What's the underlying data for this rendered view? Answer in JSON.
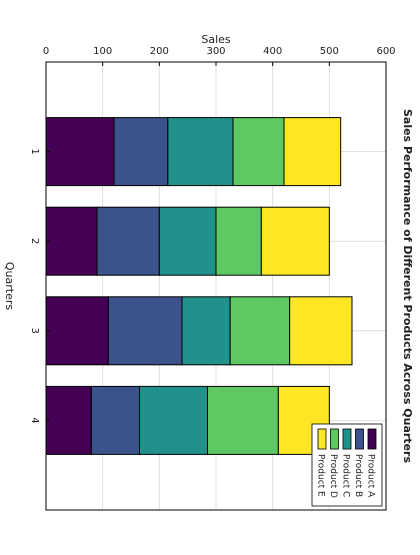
{
  "chart_data": {
    "type": "bar",
    "orientation": "vertical",
    "stacked": true,
    "rotated_view": "rotated 90 degrees clockwise",
    "title": "Sales Performance of Different Products Across Quarters",
    "xlabel": "Quarters",
    "ylabel": "Sales",
    "ylim": [
      0,
      600
    ],
    "yticks": [
      "0",
      "100",
      "200",
      "300",
      "400",
      "500",
      "600"
    ],
    "categories": [
      "1",
      "2",
      "3",
      "4"
    ],
    "grid": true,
    "legend_position": "upper-left",
    "series": [
      {
        "name": "Product A",
        "color": "#440154",
        "values": [
          120,
          90,
          110,
          80
        ]
      },
      {
        "name": "Product B",
        "color": "#3b528b",
        "values": [
          95,
          110,
          130,
          85
        ]
      },
      {
        "name": "Product C",
        "color": "#21918c",
        "values": [
          115,
          100,
          85,
          120
        ]
      },
      {
        "name": "Product D",
        "color": "#5ec962",
        "values": [
          90,
          80,
          105,
          125
        ]
      },
      {
        "name": "Product E",
        "color": "#fde725",
        "values": [
          100,
          120,
          110,
          90
        ]
      }
    ]
  }
}
